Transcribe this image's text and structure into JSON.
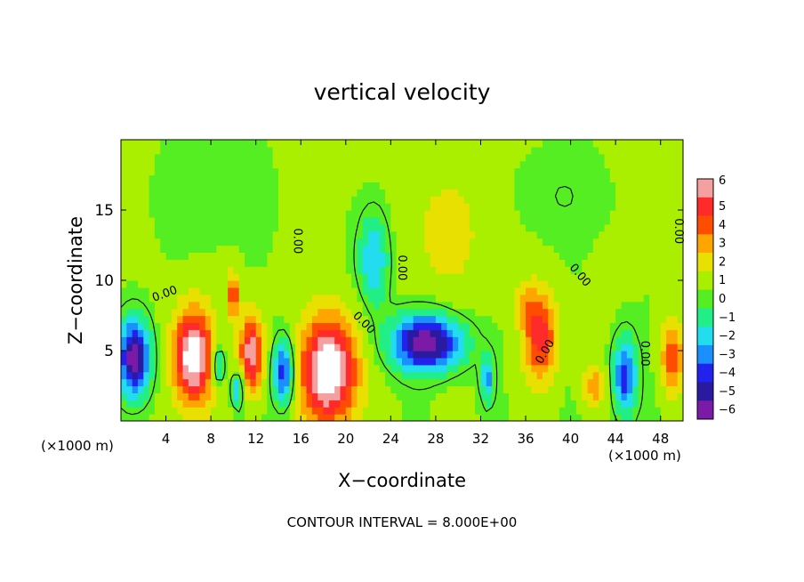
{
  "chart_data": {
    "type": "heatmap",
    "title": "vertical velocity",
    "xlabel": "X−coordinate",
    "ylabel": "Z−coordinate",
    "x_unit_left": "(×1000 m)",
    "x_unit_right": "(×1000 m)",
    "footer": "CONTOUR INTERVAL = 8.000E+00",
    "xlim": [
      0,
      50
    ],
    "ylim": [
      0,
      20
    ],
    "xticks": [
      "4",
      "8",
      "12",
      "16",
      "20",
      "24",
      "28",
      "32",
      "36",
      "40",
      "44",
      "48"
    ],
    "xtick_values": [
      4,
      8,
      12,
      16,
      20,
      24,
      28,
      32,
      36,
      40,
      44,
      48
    ],
    "yticks": [
      "5",
      "10",
      "15"
    ],
    "ytick_values": [
      5,
      10,
      15
    ],
    "colorbar": {
      "labels": [
        "6",
        "5",
        "4",
        "3",
        "2",
        "1",
        "0",
        "−1",
        "−2",
        "−3",
        "−4",
        "−5",
        "−6"
      ],
      "colors": [
        "#f5a0a0",
        "#ff2a2a",
        "#ff4d00",
        "#ffa500",
        "#e8e000",
        "#aaee00",
        "#55ee22",
        "#22ee88",
        "#22ddee",
        "#1a90ff",
        "#2222ee",
        "#2a1aa0",
        "#7a1aa6"
      ]
    },
    "contour_labels": [
      {
        "text": "0.00",
        "x": 15.4,
        "y": 12.8,
        "rotate": 90
      },
      {
        "text": "0.00",
        "x": 24.7,
        "y": 10.9,
        "rotate": 90
      },
      {
        "text": "0.00",
        "x": 4.0,
        "y": 8.8,
        "rotate": -20
      },
      {
        "text": "0.00",
        "x": 21.4,
        "y": 6.8,
        "rotate": 45
      },
      {
        "text": "0.00",
        "x": 38.0,
        "y": 4.8,
        "rotate": -60
      },
      {
        "text": "0.00",
        "x": 40.6,
        "y": 10.2,
        "rotate": 50
      },
      {
        "text": "0.00",
        "x": 46.3,
        "y": 4.8,
        "rotate": 90
      },
      {
        "text": "0.00",
        "x": 49.3,
        "y": 13.5,
        "rotate": 90
      }
    ],
    "features": [
      {
        "kind": "down",
        "x": 1.2,
        "z": 4.5,
        "rx": 1.3,
        "rz": 2.6,
        "peak": -7
      },
      {
        "kind": "up",
        "x": 6.4,
        "z": 4.6,
        "rx": 1.7,
        "rz": 3.2,
        "peak": 7
      },
      {
        "kind": "up",
        "x": 11.6,
        "z": 4.8,
        "rx": 1.0,
        "rz": 2.6,
        "peak": 5.8
      },
      {
        "kind": "down",
        "x": 8.6,
        "z": 4.0,
        "rx": 0.6,
        "rz": 1.5,
        "peak": -3.5
      },
      {
        "kind": "down",
        "x": 10.4,
        "z": 2.3,
        "rx": 0.5,
        "rz": 1.3,
        "peak": -3.5
      },
      {
        "kind": "up",
        "x": 10.0,
        "z": 9.0,
        "rx": 0.5,
        "rz": 1.5,
        "peak": 4
      },
      {
        "kind": "down",
        "x": 14.5,
        "z": 3.5,
        "rx": 0.9,
        "rz": 2.2,
        "peak": -5
      },
      {
        "kind": "up",
        "x": 18.5,
        "z": 3.6,
        "rx": 2.3,
        "rz": 3.6,
        "peak": 7.5
      },
      {
        "kind": "down",
        "x": 27.2,
        "z": 5.6,
        "rx": 3.0,
        "rz": 1.9,
        "peak": -7
      },
      {
        "kind": "down",
        "x": 22.5,
        "z": 11.5,
        "rx": 1.3,
        "rz": 3.2,
        "peak": -3.2
      },
      {
        "kind": "down",
        "x": 32.6,
        "z": 3.0,
        "rx": 0.5,
        "rz": 1.5,
        "peak": -3.5
      },
      {
        "kind": "up",
        "x": 37.3,
        "z": 6.0,
        "rx": 1.4,
        "rz": 2.8,
        "peak": 4.5
      },
      {
        "kind": "down",
        "x": 44.8,
        "z": 3.2,
        "rx": 1.0,
        "rz": 2.6,
        "peak": -4.8
      },
      {
        "kind": "up",
        "x": 49.0,
        "z": 4.5,
        "rx": 0.9,
        "rz": 2.5,
        "peak": 3.8
      },
      {
        "kind": "up",
        "x": 42.0,
        "z": 2.5,
        "rx": 1.0,
        "rz": 1.5,
        "peak": 2.5
      },
      {
        "kind": "up",
        "x": 29.0,
        "z": 13.5,
        "rx": 4.0,
        "rz": 5.0,
        "peak": 1.2
      },
      {
        "kind": "down",
        "x": 39.0,
        "z": 16.0,
        "rx": 4.0,
        "rz": 3.0,
        "peak": -0.6
      },
      {
        "kind": "down",
        "x": 8.0,
        "z": 16.0,
        "rx": 5.0,
        "rz": 4.0,
        "peak": -0.4
      },
      {
        "kind": "up",
        "x": 36.0,
        "z": 8.5,
        "rx": 1.2,
        "rz": 1.5,
        "peak": 1.5
      }
    ],
    "grid": false
  }
}
